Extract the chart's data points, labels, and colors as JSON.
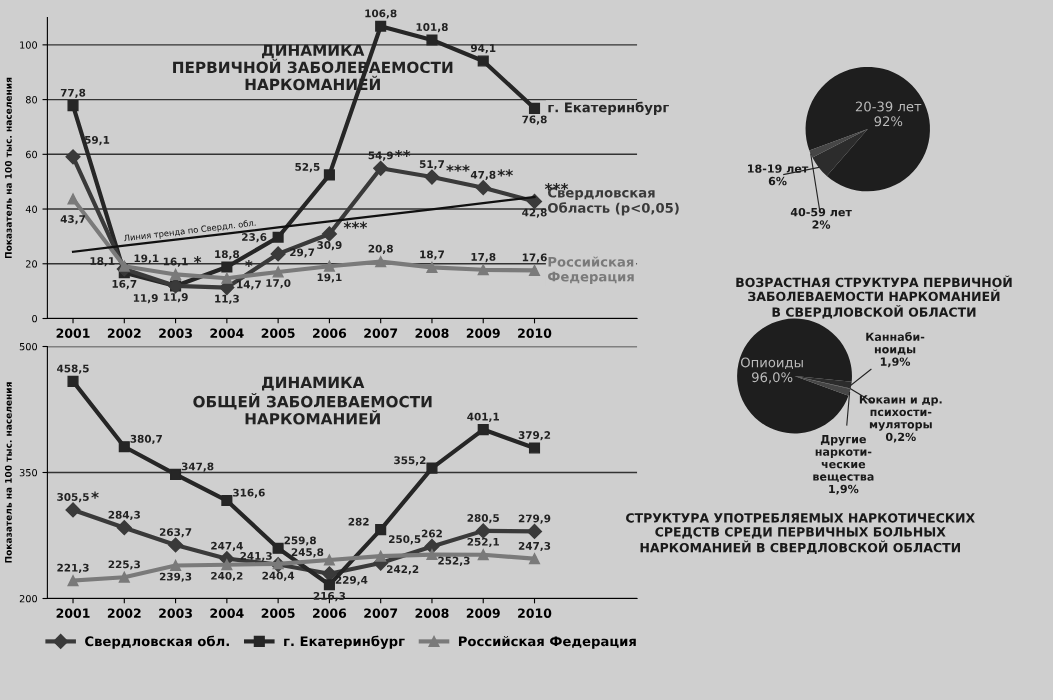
{
  "chart_data": [
    {
      "type": "line",
      "title": "ДИНАМИКА\nПЕРВИЧНОЙ ЗАБОЛЕВАЕМОСТИ\nНАРКОМАНИЕЙ",
      "ylabel": "Показатель на 100 тыс. населения",
      "categories": [
        "2001",
        "2002",
        "2003",
        "2004",
        "2005",
        "2006",
        "2007",
        "2008",
        "2009",
        "2010"
      ],
      "ylim": [
        0,
        110
      ],
      "yticks": [
        0,
        20,
        40,
        60,
        80,
        100
      ],
      "grid": "y",
      "legend": false,
      "series": [
        {
          "name": "г. Екатеринбург",
          "color": "#262626",
          "marker": "square",
          "values": [
            77.8,
            16.7,
            11.9,
            18.8,
            29.7,
            52.5,
            106.8,
            101.8,
            94.1,
            76.8
          ],
          "value_labels": [
            "77,8",
            "16,7",
            "11,9",
            "18,8",
            "29,7",
            "52,5",
            "106,8",
            "101,8",
            "94,1",
            "76,8"
          ]
        },
        {
          "name": "Свердловская\nОбласть (p<0,05)",
          "color": "#3a3a3a",
          "marker": "diamond",
          "values": [
            59.1,
            18.1,
            11.9,
            11.3,
            23.6,
            30.9,
            54.9,
            51.7,
            47.8,
            42.8
          ],
          "value_labels": [
            "59,1",
            "18,1",
            "11,9",
            "11,3",
            "23,6",
            "30,9",
            "54,9",
            "51,7",
            "47,8",
            "42,8"
          ]
        },
        {
          "name": "Российская\nФедерация",
          "color": "#7a7a7a",
          "marker": "triangle",
          "values": [
            43.7,
            19.1,
            16.1,
            14.7,
            17.0,
            19.1,
            20.8,
            18.7,
            17.8,
            17.6
          ],
          "value_labels": [
            "43,7",
            "19,1",
            "16,1",
            "14,7",
            "17,0",
            "19,1",
            "20,8",
            "18,7",
            "17,8",
            "17,6"
          ]
        },
        {
          "name": "Линия тренда по Свердл. обл.",
          "color": "#111111",
          "marker": "none",
          "values": [
            24.4,
            26.6,
            28.8,
            31.0,
            33.3,
            35.5,
            37.7,
            39.9,
            42.2,
            44.4
          ]
        }
      ],
      "annotations": [
        {
          "text": "*",
          "x": "2003",
          "y": 16.1
        },
        {
          "text": "*",
          "x": "2004",
          "y": 14.7
        },
        {
          "text": "***",
          "x": "2006",
          "y": 30.9
        },
        {
          "text": "**",
          "x": "2007",
          "y": 54.9
        },
        {
          "text": "***",
          "x": "2008",
          "y": 51.7
        },
        {
          "text": "**",
          "x": "2009",
          "y": 47.8
        },
        {
          "text": "***",
          "x": "2010",
          "y": 42.8
        }
      ]
    },
    {
      "type": "line",
      "title": "ДИНАМИКА\nОБЩЕЙ ЗАБОЛЕВАЕМОСТИ\nНАРКОМАНИЕЙ",
      "ylabel": "Показатель на 100 тыс. населения",
      "categories": [
        "2001",
        "2002",
        "2003",
        "2004",
        "2005",
        "2006",
        "2007",
        "2008",
        "2009",
        "2010"
      ],
      "ylim": [
        200,
        500
      ],
      "yticks": [
        200,
        350,
        500
      ],
      "grid": "y",
      "legend": "bottom",
      "series": [
        {
          "name": "Свердловская обл.",
          "color": "#3a3a3a",
          "marker": "diamond",
          "values": [
            305.5,
            284.3,
            263.7,
            247.4,
            240.4,
            229.4,
            242.2,
            262,
            280.5,
            279.9
          ],
          "value_labels": [
            "305,5",
            "284,3",
            "263,7",
            "247,4",
            "240,4",
            "229,4",
            "242,2",
            "262",
            "280,5",
            "279,9"
          ]
        },
        {
          "name": "г. Екатеринбург",
          "color": "#262626",
          "marker": "square",
          "values": [
            458.5,
            380.7,
            347.8,
            316.6,
            259.8,
            216.3,
            282,
            355.2,
            401.1,
            379.2
          ],
          "value_labels": [
            "458,5",
            "380,7",
            "347,8",
            "316,6",
            "259,8",
            "216,3",
            "282",
            "355,2",
            "401,1",
            "379,2"
          ]
        },
        {
          "name": "Российская Федерация",
          "color": "#7a7a7a",
          "marker": "triangle",
          "values": [
            221.3,
            225.3,
            239.3,
            240.2,
            241.3,
            245.8,
            250.5,
            252.3,
            252.1,
            247.3
          ],
          "value_labels": [
            "221,3",
            "225,3",
            "239,3",
            "240,2",
            "241,3",
            "245,8",
            "250,5",
            "252,3",
            "252,1",
            "247,3"
          ]
        }
      ],
      "annotations": [
        {
          "text": "*",
          "x": "2001",
          "y": 305.5
        }
      ]
    },
    {
      "type": "pie",
      "title": "ВОЗРАСТНАЯ СТРУКТУРА ПЕРВИЧНОЙ\nЗАБОЛЕВАЕМОСТИ НАРКОМАНИЕЙ\nВ СВЕРДЛОВСКОЙ ОБЛАСТИ",
      "categories": [
        "20-39 лет",
        "18-19 лет",
        "40-59 лет"
      ],
      "values": [
        92,
        6,
        2
      ],
      "value_labels": [
        "92%",
        "6%",
        "2%"
      ],
      "colors": [
        "#1e1e1e",
        "#2c2c2c",
        "#464646"
      ]
    },
    {
      "type": "pie",
      "title": "СТРУКТУРА УПОТРЕБЛЯЕМЫХ НАРКОТИЧЕСКИХ\nСРЕДСТВ СРЕДИ ПЕРВИЧНЫХ БОЛЬНЫХ\nНАРКОМАНИЕЙ В СВЕРДЛОВСКОЙ ОБЛАСТИ",
      "categories": [
        "Опиоиды",
        "Каннаби-\nноиды",
        "Кокаин и др.\nпсихости-\nмуляторы",
        "Другие\nнаркоти-\nческие\nвещества"
      ],
      "values": [
        96.0,
        1.9,
        0.2,
        1.9
      ],
      "value_labels": [
        "96,0%",
        "1,9%",
        "0,2%",
        "1,9%"
      ],
      "colors": [
        "#1e1e1e",
        "#2c2c2c",
        "#3a3a3a",
        "#464646"
      ]
    }
  ]
}
